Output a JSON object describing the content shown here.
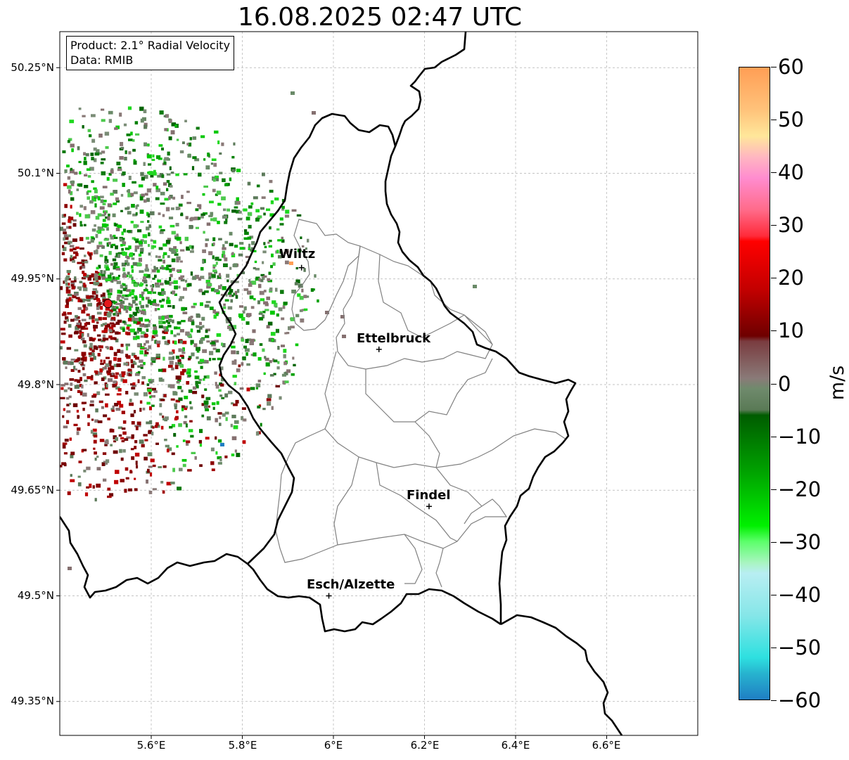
{
  "title": "16.08.2025 02:47 UTC",
  "info": {
    "product": "Product: 2.1° Radial Velocity",
    "data": "Data: RMIB"
  },
  "lat_labels": [
    "50.25°N",
    "50.1°N",
    "49.95°N",
    "49.8°N",
    "49.65°N",
    "49.5°N",
    "49.35°N"
  ],
  "lon_labels": [
    "5.6°E",
    "5.8°E",
    "6°E",
    "6.2°E",
    "6.4°E",
    "6.6°E"
  ],
  "cities": [
    {
      "name": "Wiltz",
      "lon": 5.93,
      "lat": 49.966
    },
    {
      "name": "Ettelbruck",
      "lon": 6.1,
      "lat": 49.85
    },
    {
      "name": "Findel",
      "lon": 6.21,
      "lat": 49.627
    },
    {
      "name": "Esch/Alzette",
      "lon": 5.99,
      "lat": 49.5
    }
  ],
  "radar": {
    "lon": 5.505,
    "lat": 49.915,
    "marker_color": "#e41a1c"
  },
  "colorbar": {
    "unit": "m/s",
    "min": -60,
    "max": 60,
    "tick_labels": [
      "60",
      "50",
      "40",
      "30",
      "20",
      "10",
      "0",
      "−10",
      "−20",
      "−30",
      "−40",
      "−50",
      "−60"
    ],
    "gradient_stops": [
      {
        "v": 60,
        "color": "#ff9e55"
      },
      {
        "v": 52,
        "color": "#ffc27a"
      },
      {
        "v": 47,
        "color": "#ffe79a"
      },
      {
        "v": 43,
        "color": "#ffb6c1"
      },
      {
        "v": 39,
        "color": "#ff8ccf"
      },
      {
        "v": 33,
        "color": "#ff6b8a"
      },
      {
        "v": 28,
        "color": "#ff2b3a"
      },
      {
        "v": 27,
        "color": "#ff0000"
      },
      {
        "v": 18,
        "color": "#c40000"
      },
      {
        "v": 9,
        "color": "#6e0000"
      },
      {
        "v": 8,
        "color": "#7a3c40"
      },
      {
        "v": 1,
        "color": "#8a7a78"
      },
      {
        "v": -1,
        "color": "#6f8a6c"
      },
      {
        "v": -5,
        "color": "#5a7a56"
      },
      {
        "v": -6,
        "color": "#005c00"
      },
      {
        "v": -17,
        "color": "#00a400"
      },
      {
        "v": -27,
        "color": "#00f000"
      },
      {
        "v": -30,
        "color": "#5cff6a"
      },
      {
        "v": -34,
        "color": "#a8f5c0"
      },
      {
        "v": -36,
        "color": "#b8eef2"
      },
      {
        "v": -44,
        "color": "#86e6e8"
      },
      {
        "v": -52,
        "color": "#2ee0e0"
      },
      {
        "v": -55,
        "color": "#27b4cf"
      },
      {
        "v": -60,
        "color": "#1f7ec4"
      }
    ]
  },
  "colors": {
    "inbound_green": "#00a000",
    "neutral_gray": "#6a8a68",
    "outbound_red": "#a00000",
    "border_black": "#000000",
    "canton_gray": "#808080"
  }
}
